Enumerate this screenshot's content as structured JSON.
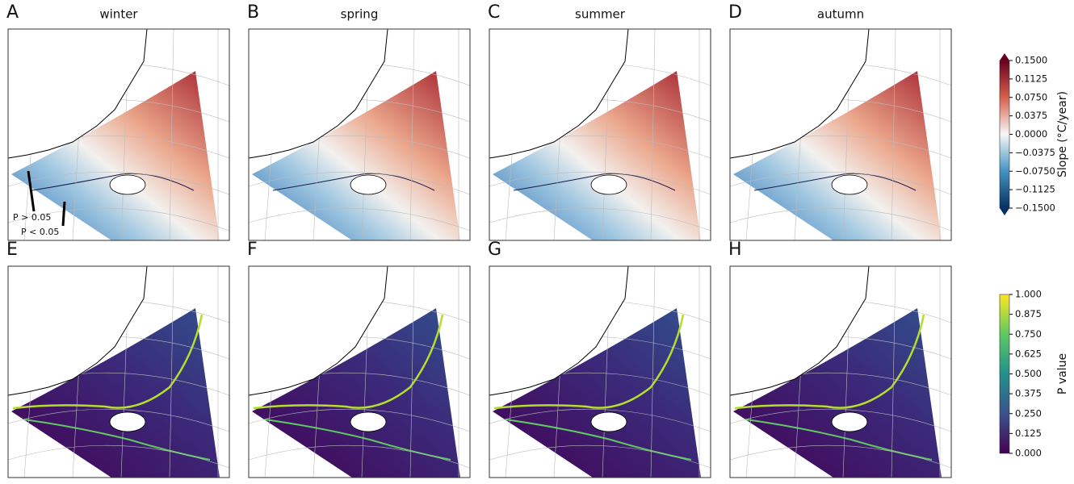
{
  "panels": [
    {
      "letter": "A",
      "title": "winter"
    },
    {
      "letter": "B",
      "title": "spring"
    },
    {
      "letter": "C",
      "title": "summer"
    },
    {
      "letter": "D",
      "title": "autumn"
    },
    {
      "letter": "E"
    },
    {
      "letter": "F"
    },
    {
      "letter": "G"
    },
    {
      "letter": "H"
    }
  ],
  "annotations": [
    "P > 0.05",
    "P < 0.05"
  ],
  "colorbars": [
    {
      "label": "Slope (°C/year)",
      "lim": [
        -0.15,
        0.15
      ],
      "ticks": [
        {
          "value": 0.15,
          "label": "0.1500"
        },
        {
          "value": 0.1125,
          "label": "0.1125"
        },
        {
          "value": 0.075,
          "label": "0.0750"
        },
        {
          "value": 0.0375,
          "label": "0.0375"
        },
        {
          "value": 0,
          "label": "0.0000"
        },
        {
          "value": -0.0375,
          "label": "−0.0375"
        },
        {
          "value": -0.075,
          "label": "−0.0750"
        },
        {
          "value": -0.1125,
          "label": "−0.1125"
        },
        {
          "value": -0.15,
          "label": "−0.1500"
        }
      ]
    },
    {
      "label": "P value",
      "lim": [
        0,
        1
      ],
      "ticks": [
        {
          "value": 1,
          "label": "1.000"
        },
        {
          "value": 0.875,
          "label": "0.875"
        },
        {
          "value": 0.75,
          "label": "0.750"
        },
        {
          "value": 0.625,
          "label": "0.625"
        },
        {
          "value": 0.5,
          "label": "0.500"
        },
        {
          "value": 0.375,
          "label": "0.375"
        },
        {
          "value": 0.25,
          "label": "0.250"
        },
        {
          "value": 0.125,
          "label": "0.125"
        },
        {
          "value": 0,
          "label": "0.000"
        }
      ]
    }
  ]
}
